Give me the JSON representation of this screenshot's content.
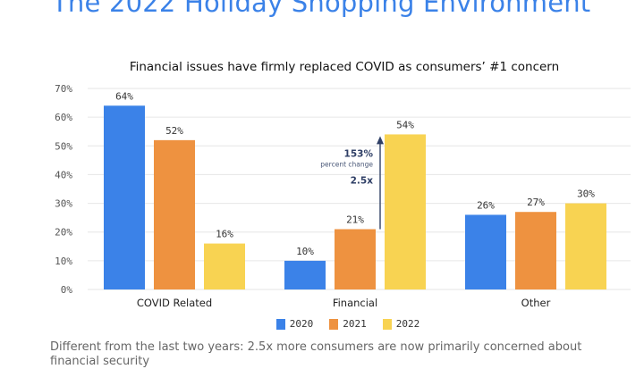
{
  "page": {
    "title": "The 2022 Holiday Shopping Environment",
    "footnote": "Different from the last two years: 2.5x more consumers are now primarily concerned about financial security"
  },
  "colors": {
    "2020": "#3b82e8",
    "2021": "#ee9240",
    "2022": "#f8d352",
    "title": "#3b82e8",
    "annotation": "#2f3f66"
  },
  "chart_data": {
    "type": "bar",
    "title": "Financial issues have firmly replaced COVID as consumers’ #1 concern",
    "xlabel": "",
    "ylabel": "",
    "categories": [
      "COVID Related",
      "Financial",
      "Other"
    ],
    "series": [
      {
        "name": "2020",
        "values": [
          64,
          10,
          26
        ],
        "labels": [
          "64%",
          "10%",
          "26%"
        ]
      },
      {
        "name": "2021",
        "values": [
          52,
          21,
          27
        ],
        "labels": [
          "52%",
          "21%",
          "27%"
        ]
      },
      {
        "name": "2022",
        "values": [
          16,
          54,
          30
        ],
        "labels": [
          "16%",
          "54%",
          "30%"
        ]
      }
    ],
    "ylim": [
      0,
      70
    ],
    "yticks": [
      0,
      10,
      20,
      30,
      40,
      50,
      60,
      70
    ],
    "ytick_labels": [
      "0%",
      "10%",
      "20%",
      "30%",
      "40%",
      "50%",
      "60%",
      "70%"
    ],
    "grid": true,
    "legend": {
      "position": "bottom-center",
      "entries": [
        "2020",
        "2021",
        "2022"
      ]
    },
    "annotation": {
      "category": "Financial",
      "from_series": "2021",
      "to_series": "2022",
      "value_text": "153%",
      "value_caption": "percent change",
      "multiple_text": "2.5x"
    }
  }
}
